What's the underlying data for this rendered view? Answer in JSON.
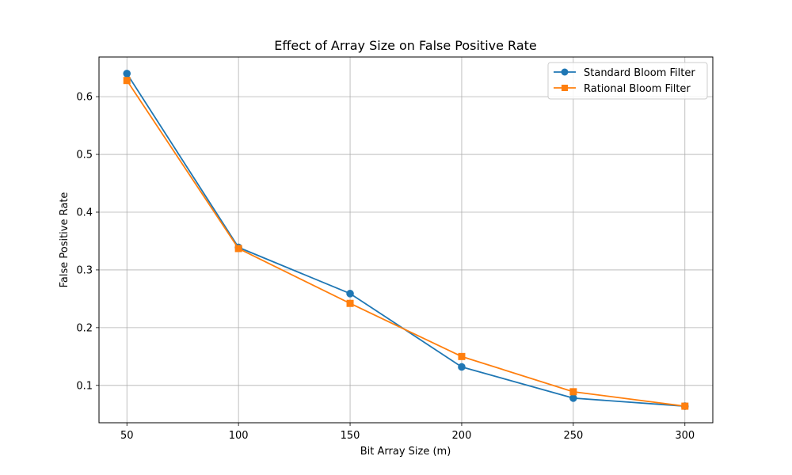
{
  "chart_data": {
    "type": "line",
    "title": "Effect of Array Size on False Positive Rate",
    "xlabel": "Bit Array Size (m)",
    "ylabel": "False Positive Rate",
    "x": [
      50,
      100,
      150,
      200,
      250,
      300
    ],
    "xticks": [
      "50",
      "100",
      "150",
      "200",
      "250",
      "300"
    ],
    "yticks": [
      "0.1",
      "0.2",
      "0.3",
      "0.4",
      "0.5",
      "0.6"
    ],
    "xlim": [
      37.5,
      312.5
    ],
    "ylim": [
      0.0353,
      0.6687
    ],
    "grid": true,
    "legend_position": "top-right",
    "series": [
      {
        "name": "Standard Bloom Filter",
        "color": "#1f77b4",
        "marker": "circle",
        "values": [
          0.64,
          0.339,
          0.259,
          0.132,
          0.078,
          0.064
        ]
      },
      {
        "name": "Rational Bloom Filter",
        "color": "#ff7f0e",
        "marker": "square",
        "values": [
          0.628,
          0.337,
          0.242,
          0.15,
          0.089,
          0.064
        ]
      }
    ]
  }
}
